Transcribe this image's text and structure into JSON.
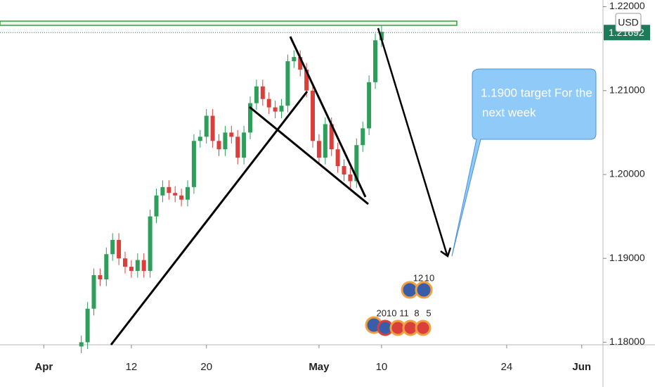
{
  "chart_data": {
    "type": "candlestick",
    "x": [
      3,
      3.5,
      4,
      4.5,
      5,
      5.5,
      6,
      6.5,
      7,
      7.5,
      8,
      8.5,
      9,
      9.5,
      10,
      10.5,
      11,
      11.5,
      12,
      12.5,
      13,
      13.5,
      14,
      14.5,
      15,
      15.5,
      16,
      16.5,
      17,
      17.5,
      18,
      18.5,
      19,
      19.5,
      20,
      20.5,
      21,
      21.5,
      22,
      22.5,
      23,
      23.5,
      24,
      24.5,
      25,
      25.5,
      26,
      26.5,
      27
    ],
    "open": [
      1.1795,
      1.18,
      1.184,
      1.188,
      1.1875,
      1.1905,
      1.1922,
      1.19,
      1.189,
      1.1885,
      1.1898,
      1.1885,
      1.195,
      1.1975,
      1.1985,
      1.1978,
      1.1975,
      1.197,
      1.1985,
      1.204,
      1.2045,
      1.207,
      1.204,
      1.203,
      1.205,
      1.2045,
      1.202,
      1.205,
      1.2085,
      1.2105,
      1.209,
      1.208,
      1.2075,
      1.2082,
      1.2135,
      1.214,
      1.2125,
      1.21,
      1.204,
      1.202,
      1.206,
      1.203,
      1.201,
      1.2,
      1.1992,
      1.2035,
      1.2055,
      1.211,
      1.216
    ],
    "high": [
      1.1808,
      1.1848,
      1.1888,
      1.1888,
      1.1913,
      1.193,
      1.193,
      1.1908,
      1.1898,
      1.1906,
      1.1906,
      1.1958,
      1.1983,
      1.1993,
      1.1993,
      1.1986,
      1.1983,
      1.1993,
      1.2048,
      1.2053,
      1.2078,
      1.2078,
      1.2048,
      1.2058,
      1.2058,
      1.2053,
      1.2058,
      1.2093,
      1.2113,
      1.2113,
      1.2098,
      1.2088,
      1.209,
      1.2143,
      1.2148,
      1.2148,
      1.2133,
      1.2108,
      1.2048,
      1.2068,
      1.2068,
      1.2038,
      1.2018,
      1.2008,
      1.2043,
      1.2063,
      1.2118,
      1.2168,
      1.2178
    ],
    "low": [
      1.1787,
      1.1792,
      1.1832,
      1.1867,
      1.1867,
      1.1897,
      1.1892,
      1.1882,
      1.1877,
      1.1877,
      1.1877,
      1.1877,
      1.1942,
      1.1967,
      1.197,
      1.1967,
      1.1962,
      1.1962,
      1.1977,
      1.2032,
      1.2037,
      1.2032,
      1.2022,
      1.2022,
      1.2037,
      1.2012,
      1.2012,
      1.2042,
      1.2077,
      1.2082,
      1.2072,
      1.2067,
      1.2067,
      1.2074,
      1.2127,
      1.2117,
      1.2092,
      1.2032,
      1.2012,
      1.2012,
      1.2022,
      1.2002,
      1.1992,
      1.1984,
      1.1984,
      1.2027,
      1.2047,
      1.2102,
      1.2152
    ],
    "close": [
      1.18,
      1.184,
      1.188,
      1.1875,
      1.1905,
      1.1922,
      1.19,
      1.189,
      1.1885,
      1.1898,
      1.1885,
      1.195,
      1.1975,
      1.1985,
      1.1978,
      1.1975,
      1.197,
      1.1985,
      1.204,
      1.2045,
      1.207,
      1.204,
      1.203,
      1.205,
      1.2045,
      1.202,
      1.205,
      1.2085,
      1.2105,
      1.209,
      1.208,
      1.2075,
      1.2082,
      1.2135,
      1.214,
      1.2125,
      1.21,
      1.204,
      1.202,
      1.206,
      1.203,
      1.201,
      1.2,
      1.1992,
      1.2035,
      1.2055,
      1.211,
      1.216,
      1.217
    ],
    "up_color": "#2e9e5b",
    "down_color": "#d9403b",
    "xlim": [
      -3.5,
      44.7
    ],
    "xticks": [
      {
        "value": 0,
        "label": "Apr"
      },
      {
        "value": 7,
        "label": "12"
      },
      {
        "value": 13,
        "label": "20"
      },
      {
        "value": 22,
        "label": "May"
      },
      {
        "value": 27,
        "label": "10"
      },
      {
        "value": 37,
        "label": "24"
      },
      {
        "value": 43,
        "label": "Jun"
      }
    ],
    "ylim": [
      1.1797,
      1.2208
    ],
    "yticks": [
      {
        "value": 1.22,
        "label": "1.22000"
      },
      {
        "value": 1.21,
        "label": "1.21000"
      },
      {
        "value": 1.2,
        "label": "1.20000"
      },
      {
        "value": 1.19,
        "label": "1.19000"
      },
      {
        "value": 1.18,
        "label": "1.18000"
      }
    ],
    "current_price": {
      "value": 1.21692,
      "label": "1.21692"
    },
    "currency": "USD",
    "annotation": [
      "1.1900 target For the",
      "next week"
    ],
    "events": [
      "12",
      "10",
      "2010",
      "11",
      "8",
      "5"
    ]
  }
}
